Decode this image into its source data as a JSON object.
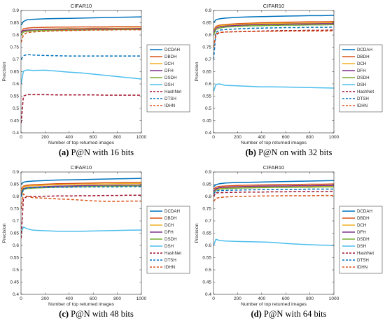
{
  "figure": {
    "captions": [
      {
        "letter": "(a)",
        "text": "P@N with 16 bits"
      },
      {
        "letter": "(b)",
        "text": "P@N on with 32 bits"
      },
      {
        "letter": "(c)",
        "text": "P@N with 48 bits"
      },
      {
        "letter": "(d)",
        "text": "P@N with 64 bits"
      }
    ]
  },
  "chart_data": [
    {
      "type": "line",
      "title": "CIFAR10",
      "xlabel": "Number of top returned images",
      "ylabel": "Precision",
      "xlim": [
        0,
        1000
      ],
      "ylim": [
        0.4,
        0.9
      ],
      "xticks": [
        0,
        200,
        400,
        600,
        800,
        1000
      ],
      "yticks": [
        0.4,
        0.45,
        0.5,
        0.55,
        0.6,
        0.65,
        0.7,
        0.75,
        0.8,
        0.85,
        0.9
      ],
      "legend_position": "right",
      "grid": false,
      "x": [
        1,
        20,
        50,
        100,
        200,
        300,
        400,
        500,
        600,
        700,
        800,
        900,
        1000
      ],
      "series": [
        {
          "name": "DCDAH",
          "color": "#0072BD",
          "dash": "solid",
          "values": [
            0.84,
            0.855,
            0.862,
            0.864,
            0.866,
            0.867,
            0.868,
            0.869,
            0.87,
            0.871,
            0.872,
            0.873,
            0.874
          ]
        },
        {
          "name": "DBDH",
          "color": "#D95319",
          "dash": "solid",
          "values": [
            0.81,
            0.825,
            0.828,
            0.83,
            0.831,
            0.832,
            0.832,
            0.833,
            0.833,
            0.833,
            0.834,
            0.834,
            0.834
          ]
        },
        {
          "name": "DCH",
          "color": "#EDB120",
          "dash": "solid",
          "values": [
            0.8,
            0.812,
            0.818,
            0.821,
            0.824,
            0.825,
            0.826,
            0.826,
            0.827,
            0.827,
            0.827,
            0.828,
            0.828
          ]
        },
        {
          "name": "DFH",
          "color": "#7E2F8E",
          "dash": "solid",
          "values": [
            0.81,
            0.818,
            0.82,
            0.821,
            0.822,
            0.823,
            0.824,
            0.824,
            0.825,
            0.825,
            0.825,
            0.825,
            0.826
          ]
        },
        {
          "name": "DSDH",
          "color": "#77AC30",
          "dash": "solid",
          "values": [
            0.8,
            0.812,
            0.815,
            0.817,
            0.818,
            0.819,
            0.82,
            0.82,
            0.821,
            0.821,
            0.822,
            0.822,
            0.822
          ]
        },
        {
          "name": "DSH",
          "color": "#4DBEEE",
          "dash": "solid",
          "values": [
            0.6,
            0.652,
            0.657,
            0.655,
            0.656,
            0.652,
            0.648,
            0.645,
            0.64,
            0.635,
            0.63,
            0.625,
            0.62
          ]
        },
        {
          "name": "HashNet",
          "color": "#A2142F",
          "dash": "dashed",
          "values": [
            0.44,
            0.55,
            0.556,
            0.556,
            0.556,
            0.555,
            0.555,
            0.555,
            0.555,
            0.554,
            0.554,
            0.554,
            0.554
          ]
        },
        {
          "name": "DTSH",
          "color": "#0072BD",
          "dash": "dashed",
          "values": [
            0.7,
            0.715,
            0.72,
            0.718,
            0.716,
            0.715,
            0.714,
            0.714,
            0.714,
            0.714,
            0.714,
            0.714,
            0.714
          ]
        },
        {
          "name": "IDHN",
          "color": "#D95319",
          "dash": "dashed",
          "values": [
            0.77,
            0.8,
            0.81,
            0.812,
            0.815,
            0.817,
            0.818,
            0.819,
            0.82,
            0.82,
            0.821,
            0.821,
            0.821
          ]
        }
      ]
    },
    {
      "type": "line",
      "title": "CIFAR10",
      "xlabel": "Number of top returned images",
      "ylabel": "Precision",
      "xlim": [
        0,
        1000
      ],
      "ylim": [
        0.4,
        0.9
      ],
      "xticks": [
        0,
        200,
        400,
        600,
        800,
        1000
      ],
      "yticks": [
        0.4,
        0.45,
        0.5,
        0.55,
        0.6,
        0.65,
        0.7,
        0.75,
        0.8,
        0.85,
        0.9
      ],
      "legend_position": "right",
      "grid": false,
      "x": [
        1,
        20,
        50,
        100,
        200,
        300,
        400,
        500,
        600,
        700,
        800,
        900,
        1000
      ],
      "series": [
        {
          "name": "DCDAH",
          "color": "#0072BD",
          "dash": "solid",
          "values": [
            0.85,
            0.862,
            0.866,
            0.869,
            0.872,
            0.874,
            0.875,
            0.876,
            0.877,
            0.878,
            0.879,
            0.879,
            0.88
          ]
        },
        {
          "name": "DBDH",
          "color": "#D95319",
          "dash": "solid",
          "values": [
            0.82,
            0.835,
            0.84,
            0.843,
            0.846,
            0.848,
            0.85,
            0.851,
            0.852,
            0.853,
            0.854,
            0.854,
            0.855
          ]
        },
        {
          "name": "DCH",
          "color": "#EDB120",
          "dash": "solid",
          "values": [
            0.82,
            0.832,
            0.837,
            0.84,
            0.843,
            0.845,
            0.846,
            0.847,
            0.848,
            0.848,
            0.849,
            0.849,
            0.85
          ]
        },
        {
          "name": "DFH",
          "color": "#7E2F8E",
          "dash": "solid",
          "values": [
            0.81,
            0.828,
            0.833,
            0.836,
            0.839,
            0.841,
            0.842,
            0.843,
            0.844,
            0.845,
            0.845,
            0.846,
            0.846
          ]
        },
        {
          "name": "DSDH",
          "color": "#77AC30",
          "dash": "solid",
          "values": [
            0.8,
            0.822,
            0.828,
            0.832,
            0.835,
            0.837,
            0.838,
            0.839,
            0.84,
            0.84,
            0.841,
            0.841,
            0.842
          ]
        },
        {
          "name": "DSH",
          "color": "#4DBEEE",
          "dash": "solid",
          "values": [
            0.57,
            0.598,
            0.6,
            0.594,
            0.592,
            0.59,
            0.588,
            0.588,
            0.587,
            0.586,
            0.585,
            0.584,
            0.583
          ]
        },
        {
          "name": "HashNet",
          "color": "#A2142F",
          "dash": "dashed",
          "values": [
            0.75,
            0.8,
            0.81,
            0.812,
            0.814,
            0.815,
            0.816,
            0.817,
            0.818,
            0.818,
            0.819,
            0.819,
            0.82
          ]
        },
        {
          "name": "DTSH",
          "color": "#0072BD",
          "dash": "dashed",
          "values": [
            0.7,
            0.81,
            0.82,
            0.822,
            0.825,
            0.827,
            0.828,
            0.829,
            0.83,
            0.83,
            0.831,
            0.831,
            0.832
          ]
        },
        {
          "name": "IDHN",
          "color": "#D95319",
          "dash": "dashed",
          "values": [
            0.75,
            0.805,
            0.81,
            0.812,
            0.813,
            0.814,
            0.815,
            0.815,
            0.816,
            0.816,
            0.816,
            0.816,
            0.817
          ]
        }
      ]
    },
    {
      "type": "line",
      "title": "CIFAR10",
      "xlabel": "Number of top returned images",
      "ylabel": "Precision",
      "xlim": [
        0,
        1000
      ],
      "ylim": [
        0.4,
        0.9
      ],
      "xticks": [
        0,
        200,
        400,
        600,
        800,
        1000
      ],
      "yticks": [
        0.4,
        0.45,
        0.5,
        0.55,
        0.6,
        0.65,
        0.7,
        0.75,
        0.8,
        0.85,
        0.9
      ],
      "legend_position": "right",
      "grid": false,
      "x": [
        1,
        20,
        50,
        100,
        200,
        300,
        400,
        500,
        600,
        700,
        800,
        900,
        1000
      ],
      "series": [
        {
          "name": "DCDAH",
          "color": "#0072BD",
          "dash": "solid",
          "values": [
            0.85,
            0.858,
            0.861,
            0.863,
            0.865,
            0.867,
            0.868,
            0.869,
            0.87,
            0.871,
            0.872,
            0.873,
            0.874
          ]
        },
        {
          "name": "DBDH",
          "color": "#D95319",
          "dash": "solid",
          "values": [
            0.83,
            0.842,
            0.846,
            0.848,
            0.85,
            0.852,
            0.853,
            0.854,
            0.855,
            0.856,
            0.856,
            0.857,
            0.857
          ]
        },
        {
          "name": "DCH",
          "color": "#EDB120",
          "dash": "solid",
          "values": [
            0.82,
            0.838,
            0.842,
            0.844,
            0.846,
            0.848,
            0.849,
            0.85,
            0.851,
            0.851,
            0.852,
            0.852,
            0.853
          ]
        },
        {
          "name": "DFH",
          "color": "#7E2F8E",
          "dash": "solid",
          "values": [
            0.81,
            0.832,
            0.836,
            0.838,
            0.84,
            0.842,
            0.843,
            0.844,
            0.845,
            0.845,
            0.846,
            0.846,
            0.846
          ]
        },
        {
          "name": "DSDH",
          "color": "#77AC30",
          "dash": "solid",
          "values": [
            0.8,
            0.828,
            0.832,
            0.834,
            0.836,
            0.838,
            0.839,
            0.84,
            0.841,
            0.842,
            0.842,
            0.843,
            0.843
          ]
        },
        {
          "name": "DSH",
          "color": "#4DBEEE",
          "dash": "solid",
          "values": [
            0.65,
            0.675,
            0.668,
            0.662,
            0.66,
            0.658,
            0.658,
            0.658,
            0.659,
            0.66,
            0.661,
            0.662,
            0.663
          ]
        },
        {
          "name": "HashNet",
          "color": "#A2142F",
          "dash": "dashed",
          "values": [
            0.63,
            0.79,
            0.8,
            0.8,
            0.801,
            0.802,
            0.802,
            0.803,
            0.803,
            0.804,
            0.804,
            0.805,
            0.805
          ]
        },
        {
          "name": "DTSH",
          "color": "#0072BD",
          "dash": "dashed",
          "values": [
            0.8,
            0.83,
            0.835,
            0.836,
            0.837,
            0.838,
            0.838,
            0.839,
            0.839,
            0.839,
            0.839,
            0.84,
            0.84
          ]
        },
        {
          "name": "IDHN",
          "color": "#D95319",
          "dash": "dashed",
          "values": [
            0.75,
            0.81,
            0.8,
            0.795,
            0.793,
            0.79,
            0.788,
            0.785,
            0.782,
            0.78,
            0.78,
            0.781,
            0.781
          ]
        }
      ]
    },
    {
      "type": "line",
      "title": "CIFAR10",
      "xlabel": "Number of top returned images",
      "ylabel": "Precision",
      "xlim": [
        0,
        1000
      ],
      "ylim": [
        0.4,
        0.9
      ],
      "xticks": [
        0,
        200,
        400,
        600,
        800,
        1000
      ],
      "yticks": [
        0.4,
        0.45,
        0.5,
        0.55,
        0.6,
        0.65,
        0.7,
        0.75,
        0.8,
        0.85,
        0.9
      ],
      "legend_position": "right",
      "grid": false,
      "x": [
        1,
        20,
        50,
        100,
        200,
        300,
        400,
        500,
        600,
        700,
        800,
        900,
        1000
      ],
      "series": [
        {
          "name": "DCDAH",
          "color": "#0072BD",
          "dash": "solid",
          "values": [
            0.84,
            0.848,
            0.852,
            0.855,
            0.857,
            0.858,
            0.859,
            0.86,
            0.861,
            0.862,
            0.863,
            0.864,
            0.865
          ]
        },
        {
          "name": "DBDH",
          "color": "#D95319",
          "dash": "solid",
          "values": [
            0.83,
            0.838,
            0.841,
            0.843,
            0.845,
            0.846,
            0.847,
            0.848,
            0.849,
            0.849,
            0.85,
            0.85,
            0.851
          ]
        },
        {
          "name": "DCH",
          "color": "#EDB120",
          "dash": "solid",
          "values": [
            0.82,
            0.83,
            0.834,
            0.836,
            0.838,
            0.839,
            0.84,
            0.84,
            0.841,
            0.841,
            0.842,
            0.842,
            0.843
          ]
        },
        {
          "name": "DFH",
          "color": "#7E2F8E",
          "dash": "solid",
          "values": [
            0.82,
            0.832,
            0.836,
            0.838,
            0.84,
            0.841,
            0.842,
            0.843,
            0.843,
            0.844,
            0.844,
            0.845,
            0.845
          ]
        },
        {
          "name": "DSDH",
          "color": "#77AC30",
          "dash": "solid",
          "values": [
            0.81,
            0.826,
            0.83,
            0.832,
            0.834,
            0.835,
            0.836,
            0.837,
            0.837,
            0.838,
            0.838,
            0.839,
            0.839
          ]
        },
        {
          "name": "DSH",
          "color": "#4DBEEE",
          "dash": "solid",
          "values": [
            0.6,
            0.625,
            0.62,
            0.618,
            0.616,
            0.615,
            0.614,
            0.612,
            0.608,
            0.605,
            0.603,
            0.601,
            0.6
          ]
        },
        {
          "name": "HashNet",
          "color": "#A2142F",
          "dash": "dashed",
          "values": [
            0.8,
            0.815,
            0.815,
            0.816,
            0.817,
            0.818,
            0.818,
            0.819,
            0.819,
            0.82,
            0.82,
            0.82,
            0.821
          ]
        },
        {
          "name": "DTSH",
          "color": "#0072BD",
          "dash": "dashed",
          "values": [
            0.81,
            0.822,
            0.824,
            0.825,
            0.826,
            0.827,
            0.828,
            0.828,
            0.829,
            0.829,
            0.83,
            0.83,
            0.83
          ]
        },
        {
          "name": "IDHN",
          "color": "#D95319",
          "dash": "dashed",
          "values": [
            0.78,
            0.792,
            0.796,
            0.798,
            0.8,
            0.801,
            0.802,
            0.802,
            0.803,
            0.803,
            0.803,
            0.804,
            0.804
          ]
        }
      ]
    }
  ]
}
